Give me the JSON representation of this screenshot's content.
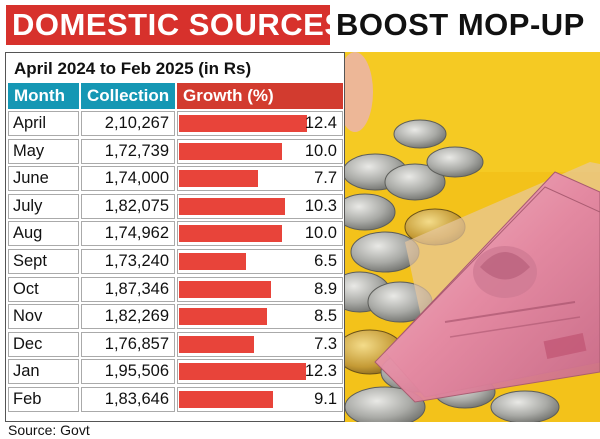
{
  "headline": {
    "part1": "DOMESTIC SOURCES",
    "part2": "BOOST MOP-UP"
  },
  "colors": {
    "headline_red": "#d7312c",
    "header_teal": "#1597b4",
    "header_red": "#d23b2f",
    "bar": "#e8443a"
  },
  "chart_data": {
    "type": "table",
    "title": "April 2024 to Feb 2025 (in Rs)",
    "columns": [
      "Month",
      "Collection",
      "Growth (%)"
    ],
    "categories": [
      "April",
      "May",
      "June",
      "July",
      "Aug",
      "Sept",
      "Oct",
      "Nov",
      "Dec",
      "Jan",
      "Feb"
    ],
    "collection": [
      "2,10,267",
      "1,72,739",
      "1,74,000",
      "1,82,075",
      "1,74,962",
      "1,73,240",
      "1,87,346",
      "1,82,269",
      "1,76,857",
      "1,95,506",
      "1,83,646"
    ],
    "growth": [
      "12.4",
      "10.0",
      "7.7",
      "10.3",
      "10.0",
      "6.5",
      "8.9",
      "8.5",
      "7.3",
      "12.3",
      "9.1"
    ],
    "growth_max": 12.4
  },
  "source": "Source: Govt"
}
